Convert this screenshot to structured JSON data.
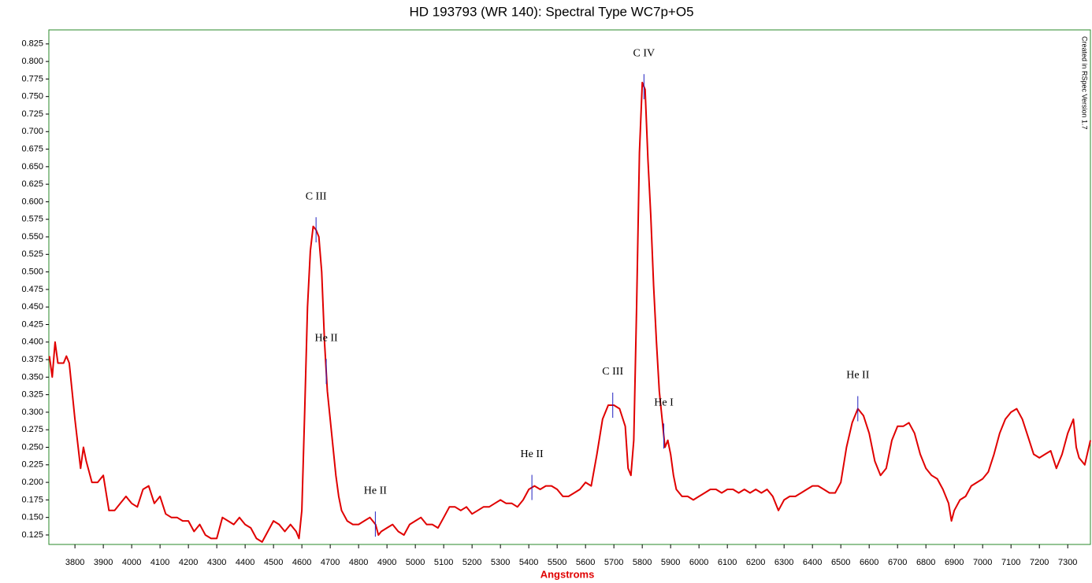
{
  "chart_data": {
    "type": "line",
    "title": "HD 193793 (WR 140): Spectral Type WC7p+O5",
    "x_label": "Angstroms",
    "watermark": "Created in RSpec Version 1.7",
    "color": "#e00000",
    "marker_color": "#2020c0",
    "border_color": "#2a8a2a",
    "x": [
      3710,
      3720,
      3730,
      3740,
      3760,
      3770,
      3780,
      3800,
      3820,
      3830,
      3840,
      3860,
      3880,
      3900,
      3920,
      3940,
      3960,
      3980,
      4000,
      4020,
      4040,
      4060,
      4080,
      4100,
      4120,
      4140,
      4160,
      4180,
      4200,
      4220,
      4240,
      4260,
      4280,
      4300,
      4320,
      4340,
      4360,
      4380,
      4400,
      4420,
      4440,
      4460,
      4480,
      4500,
      4520,
      4540,
      4560,
      4580,
      4590,
      4600,
      4610,
      4620,
      4630,
      4640,
      4650,
      4660,
      4670,
      4680,
      4690,
      4700,
      4710,
      4720,
      4730,
      4740,
      4760,
      4780,
      4800,
      4820,
      4840,
      4860,
      4870,
      4880,
      4900,
      4920,
      4940,
      4960,
      4980,
      5000,
      5020,
      5040,
      5060,
      5080,
      5100,
      5120,
      5140,
      5160,
      5180,
      5200,
      5220,
      5240,
      5260,
      5280,
      5300,
      5320,
      5340,
      5360,
      5380,
      5400,
      5420,
      5440,
      5460,
      5480,
      5500,
      5520,
      5540,
      5560,
      5580,
      5600,
      5620,
      5640,
      5660,
      5680,
      5700,
      5720,
      5740,
      5750,
      5760,
      5770,
      5780,
      5790,
      5800,
      5810,
      5820,
      5830,
      5840,
      5850,
      5860,
      5870,
      5880,
      5890,
      5900,
      5910,
      5920,
      5940,
      5960,
      5980,
      6000,
      6020,
      6040,
      6060,
      6080,
      6100,
      6120,
      6140,
      6160,
      6180,
      6200,
      6220,
      6240,
      6260,
      6280,
      6300,
      6320,
      6340,
      6360,
      6380,
      6400,
      6420,
      6440,
      6460,
      6480,
      6500,
      6520,
      6540,
      6560,
      6580,
      6600,
      6620,
      6640,
      6660,
      6680,
      6700,
      6720,
      6740,
      6760,
      6780,
      6800,
      6820,
      6840,
      6860,
      6880,
      6890,
      6900,
      6920,
      6940,
      6960,
      6980,
      7000,
      7020,
      7040,
      7060,
      7080,
      7100,
      7120,
      7140,
      7160,
      7180,
      7200,
      7220,
      7240,
      7260,
      7280,
      7300,
      7320,
      7330,
      7340,
      7360,
      7380
    ],
    "values": [
      0.38,
      0.35,
      0.4,
      0.37,
      0.37,
      0.38,
      0.37,
      0.29,
      0.22,
      0.25,
      0.23,
      0.2,
      0.2,
      0.21,
      0.16,
      0.16,
      0.17,
      0.18,
      0.17,
      0.165,
      0.19,
      0.195,
      0.17,
      0.18,
      0.155,
      0.15,
      0.15,
      0.145,
      0.145,
      0.13,
      0.14,
      0.125,
      0.12,
      0.12,
      0.15,
      0.145,
      0.14,
      0.15,
      0.14,
      0.135,
      0.12,
      0.115,
      0.13,
      0.145,
      0.14,
      0.13,
      0.14,
      0.13,
      0.12,
      0.16,
      0.3,
      0.45,
      0.53,
      0.565,
      0.56,
      0.55,
      0.5,
      0.4,
      0.33,
      0.29,
      0.25,
      0.21,
      0.18,
      0.16,
      0.145,
      0.14,
      0.14,
      0.145,
      0.15,
      0.14,
      0.125,
      0.13,
      0.135,
      0.14,
      0.13,
      0.125,
      0.14,
      0.145,
      0.15,
      0.14,
      0.14,
      0.135,
      0.15,
      0.165,
      0.165,
      0.16,
      0.165,
      0.155,
      0.16,
      0.165,
      0.165,
      0.17,
      0.175,
      0.17,
      0.17,
      0.165,
      0.175,
      0.19,
      0.195,
      0.19,
      0.195,
      0.195,
      0.19,
      0.18,
      0.18,
      0.185,
      0.19,
      0.2,
      0.195,
      0.24,
      0.29,
      0.31,
      0.31,
      0.305,
      0.28,
      0.22,
      0.21,
      0.26,
      0.45,
      0.67,
      0.77,
      0.76,
      0.66,
      0.58,
      0.48,
      0.4,
      0.33,
      0.29,
      0.25,
      0.26,
      0.24,
      0.21,
      0.19,
      0.18,
      0.18,
      0.175,
      0.18,
      0.185,
      0.19,
      0.19,
      0.185,
      0.19,
      0.19,
      0.185,
      0.19,
      0.185,
      0.19,
      0.185,
      0.19,
      0.18,
      0.16,
      0.175,
      0.18,
      0.18,
      0.185,
      0.19,
      0.195,
      0.195,
      0.19,
      0.185,
      0.185,
      0.2,
      0.25,
      0.285,
      0.305,
      0.295,
      0.27,
      0.23,
      0.21,
      0.22,
      0.26,
      0.28,
      0.28,
      0.285,
      0.27,
      0.24,
      0.22,
      0.21,
      0.205,
      0.19,
      0.17,
      0.145,
      0.16,
      0.175,
      0.18,
      0.195,
      0.2,
      0.205,
      0.215,
      0.24,
      0.27,
      0.29,
      0.3,
      0.305,
      0.29,
      0.265,
      0.24,
      0.235,
      0.24,
      0.245,
      0.22,
      0.24,
      0.27,
      0.29,
      0.25,
      0.235,
      0.225,
      0.26
    ],
    "annotations": [
      {
        "text": "C III",
        "x": 4650
      },
      {
        "text": "He II",
        "x": 4686
      },
      {
        "text": "He II",
        "x": 4859
      },
      {
        "text": "He II",
        "x": 5411
      },
      {
        "text": "C III",
        "x": 5696
      },
      {
        "text": "C IV",
        "x": 5806
      },
      {
        "text": "He I",
        "x": 5876
      },
      {
        "text": "He II",
        "x": 6560
      }
    ],
    "xlim": [
      3708,
      7380
    ],
    "ylim": [
      0.1115,
      0.845
    ],
    "xticks": [
      3800,
      3900,
      4000,
      4100,
      4200,
      4300,
      4400,
      4500,
      4600,
      4700,
      4800,
      4900,
      5000,
      5100,
      5200,
      5300,
      5400,
      5500,
      5600,
      5700,
      5800,
      5900,
      6000,
      6100,
      6200,
      6300,
      6400,
      6500,
      6600,
      6700,
      6800,
      6900,
      7000,
      7100,
      7200,
      7300
    ],
    "yticks": [
      0.125,
      {
        "value": 0.15,
        "label": "0.150"
      },
      0.175,
      {
        "value": 0.2,
        "label": "0.200"
      },
      0.225,
      {
        "value": 0.25,
        "label": "0.250"
      },
      0.275,
      {
        "value": 0.3,
        "label": "0.300"
      },
      0.325,
      {
        "value": 0.35,
        "label": "0.350"
      },
      0.375,
      {
        "value": 0.4,
        "label": "0.400"
      },
      0.425,
      {
        "value": 0.45,
        "label": "0.450"
      },
      0.475,
      {
        "value": 0.5,
        "label": "0.500"
      },
      0.525,
      {
        "value": 0.55,
        "label": "0.550"
      },
      0.575,
      {
        "value": 0.6,
        "label": "0.600"
      },
      0.625,
      {
        "value": 0.65,
        "label": "0.650"
      },
      0.675,
      {
        "value": 0.7,
        "label": "0.700"
      },
      0.725,
      {
        "value": 0.75,
        "label": "0.750"
      },
      0.775,
      {
        "value": 0.8,
        "label": "0.800"
      },
      0.825
    ]
  }
}
